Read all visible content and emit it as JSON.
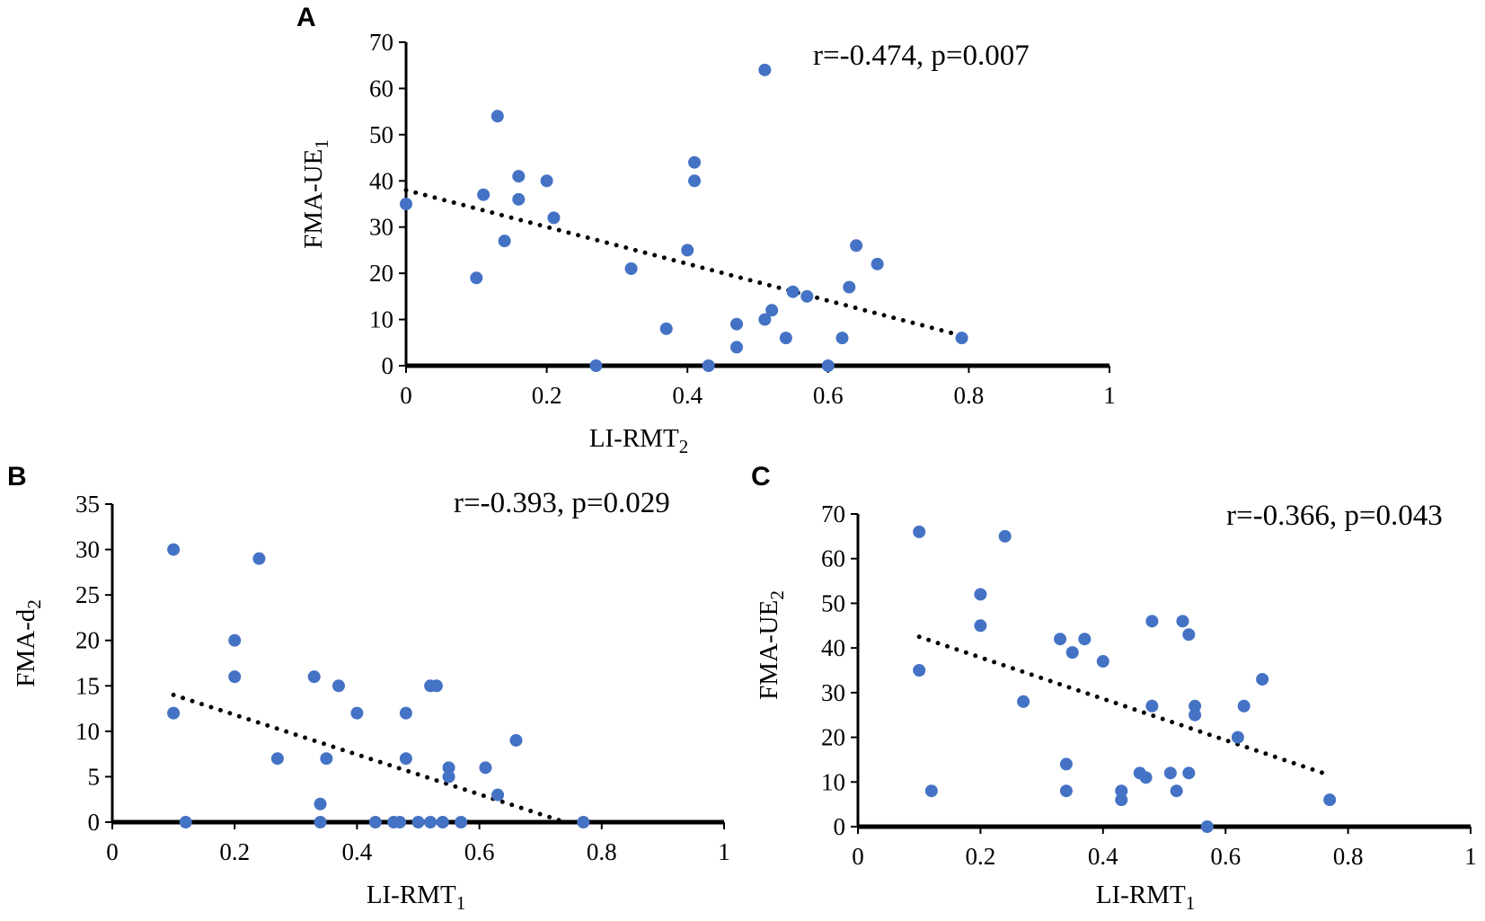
{
  "figure": {
    "background": "#ffffff",
    "point_color": "#4472C4",
    "trend_color": "#000000"
  },
  "chart_data": [
    {
      "type": "scatter",
      "panel": "A",
      "annotation": "r=-0.474, p=0.007",
      "xlabel": {
        "base": "LI-RMT",
        "sub": "2"
      },
      "ylabel": {
        "base": "FMA-UE",
        "sub": "1"
      },
      "xlim": [
        0,
        1
      ],
      "ylim": [
        0,
        70
      ],
      "xticks": [
        0,
        0.2,
        0.4,
        0.6,
        0.8,
        1
      ],
      "xtick_labels": [
        "0",
        "0.2",
        "0.4",
        "0.6",
        "0.8",
        "1"
      ],
      "yticks": [
        0,
        10,
        20,
        30,
        40,
        50,
        60,
        70
      ],
      "ytick_labels": [
        "0",
        "10",
        "20",
        "30",
        "40",
        "50",
        "60",
        "70"
      ],
      "points": [
        [
          0.0,
          35
        ],
        [
          0.1,
          19
        ],
        [
          0.11,
          37
        ],
        [
          0.13,
          54
        ],
        [
          0.14,
          27
        ],
        [
          0.16,
          41
        ],
        [
          0.16,
          36
        ],
        [
          0.2,
          40
        ],
        [
          0.21,
          32
        ],
        [
          0.27,
          0
        ],
        [
          0.32,
          21
        ],
        [
          0.37,
          8
        ],
        [
          0.4,
          25
        ],
        [
          0.41,
          44
        ],
        [
          0.41,
          40
        ],
        [
          0.43,
          0
        ],
        [
          0.47,
          4
        ],
        [
          0.47,
          9
        ],
        [
          0.51,
          10
        ],
        [
          0.51,
          64
        ],
        [
          0.52,
          12
        ],
        [
          0.54,
          6
        ],
        [
          0.55,
          16
        ],
        [
          0.57,
          15
        ],
        [
          0.6,
          0
        ],
        [
          0.62,
          6
        ],
        [
          0.63,
          17
        ],
        [
          0.64,
          26
        ],
        [
          0.67,
          22
        ],
        [
          0.79,
          6
        ]
      ],
      "trend": {
        "x": [
          0.0,
          0.79
        ],
        "y": [
          38,
          6.5
        ]
      }
    },
    {
      "type": "scatter",
      "panel": "B",
      "annotation": "r=-0.393, p=0.029",
      "xlabel": {
        "base": "LI-RMT",
        "sub": "1"
      },
      "ylabel": {
        "base": "FMA-d",
        "sub": "2"
      },
      "xlim": [
        0,
        1
      ],
      "ylim": [
        0,
        35
      ],
      "xticks": [
        0,
        0.2,
        0.4,
        0.6,
        0.8,
        1
      ],
      "xtick_labels": [
        "0",
        "0.2",
        "0.4",
        "0.6",
        "0.8",
        "1"
      ],
      "yticks": [
        0,
        5,
        10,
        15,
        20,
        25,
        30,
        35
      ],
      "ytick_labels": [
        "0",
        "5",
        "10",
        "15",
        "20",
        "25",
        "30",
        "35"
      ],
      "points": [
        [
          0.1,
          30
        ],
        [
          0.1,
          12
        ],
        [
          0.12,
          0
        ],
        [
          0.2,
          20
        ],
        [
          0.2,
          16
        ],
        [
          0.24,
          29
        ],
        [
          0.27,
          7
        ],
        [
          0.33,
          16
        ],
        [
          0.34,
          2
        ],
        [
          0.34,
          0
        ],
        [
          0.35,
          7
        ],
        [
          0.37,
          15
        ],
        [
          0.4,
          12
        ],
        [
          0.43,
          0
        ],
        [
          0.46,
          0
        ],
        [
          0.47,
          0
        ],
        [
          0.48,
          12
        ],
        [
          0.48,
          7
        ],
        [
          0.5,
          0
        ],
        [
          0.52,
          0
        ],
        [
          0.52,
          15
        ],
        [
          0.53,
          15
        ],
        [
          0.54,
          0
        ],
        [
          0.55,
          6
        ],
        [
          0.55,
          5
        ],
        [
          0.57,
          0
        ],
        [
          0.61,
          6
        ],
        [
          0.63,
          3
        ],
        [
          0.66,
          9
        ],
        [
          0.77,
          0
        ]
      ],
      "trend": {
        "x": [
          0.1,
          0.74
        ],
        "y": [
          14,
          0
        ]
      }
    },
    {
      "type": "scatter",
      "panel": "C",
      "annotation": "r=-0.366, p=0.043",
      "xlabel": {
        "base": "LI-RMT",
        "sub": "1"
      },
      "ylabel": {
        "base": "FMA-UE",
        "sub": "2"
      },
      "xlim": [
        0,
        1
      ],
      "ylim": [
        0,
        70
      ],
      "xticks": [
        0,
        0.2,
        0.4,
        0.6,
        0.8,
        1
      ],
      "xtick_labels": [
        "0",
        "0.2",
        "0.4",
        "0.6",
        "0.8",
        "1"
      ],
      "yticks": [
        0,
        10,
        20,
        30,
        40,
        50,
        60,
        70
      ],
      "ytick_labels": [
        "0",
        "10",
        "20",
        "30",
        "40",
        "50",
        "60",
        "70"
      ],
      "points": [
        [
          0.1,
          66
        ],
        [
          0.1,
          35
        ],
        [
          0.12,
          8
        ],
        [
          0.2,
          52
        ],
        [
          0.2,
          45
        ],
        [
          0.24,
          65
        ],
        [
          0.27,
          28
        ],
        [
          0.33,
          42
        ],
        [
          0.34,
          8
        ],
        [
          0.34,
          14
        ],
        [
          0.35,
          39
        ],
        [
          0.37,
          42
        ],
        [
          0.4,
          37
        ],
        [
          0.43,
          8
        ],
        [
          0.43,
          6
        ],
        [
          0.46,
          12
        ],
        [
          0.47,
          11
        ],
        [
          0.48,
          46
        ],
        [
          0.48,
          27
        ],
        [
          0.51,
          12
        ],
        [
          0.52,
          8
        ],
        [
          0.53,
          46
        ],
        [
          0.54,
          43
        ],
        [
          0.54,
          12
        ],
        [
          0.55,
          27
        ],
        [
          0.55,
          25
        ],
        [
          0.57,
          0
        ],
        [
          0.62,
          20
        ],
        [
          0.63,
          27
        ],
        [
          0.66,
          33
        ],
        [
          0.77,
          6
        ]
      ],
      "trend": {
        "x": [
          0.1,
          0.77
        ],
        "y": [
          42.5,
          11.5
        ]
      }
    }
  ]
}
